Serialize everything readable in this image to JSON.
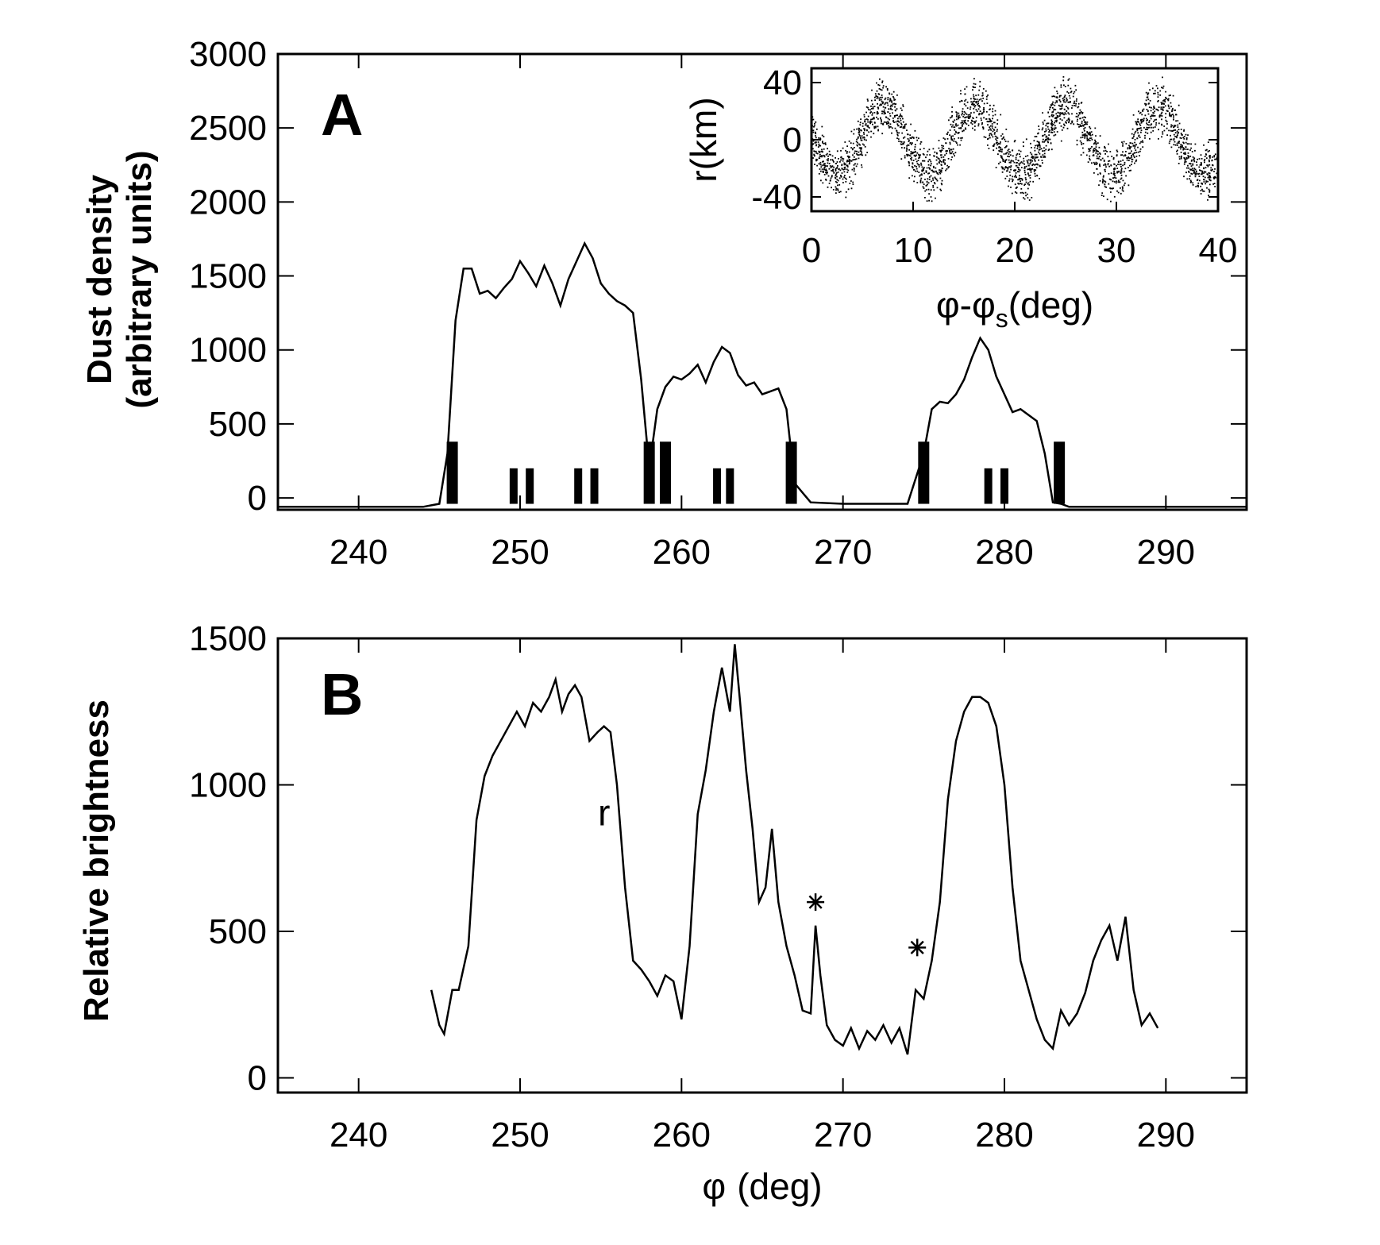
{
  "figure": {
    "colors": {
      "ink": "#000000",
      "background": "#ffffff"
    }
  },
  "chart_data": [
    {
      "panel": "A",
      "type": "line",
      "ylabel_line1": "Dust density",
      "ylabel_line2": "(arbitrary units)",
      "xlim": [
        235,
        295
      ],
      "ylim": [
        -80,
        3000
      ],
      "xticks": [
        240,
        250,
        260,
        270,
        280,
        290
      ],
      "yticks": [
        0,
        500,
        1000,
        1500,
        2000,
        2500,
        3000
      ],
      "series": [
        {
          "x": [
            235,
            244,
            245,
            245.5,
            246,
            246.5,
            247,
            247.5,
            248,
            248.5,
            249,
            249.5,
            250,
            250.5,
            251,
            251.5,
            252,
            252.5,
            253,
            253.5,
            254,
            254.5,
            255,
            255.5,
            256,
            256.5,
            257,
            257.5,
            258,
            258.5,
            259,
            259.5,
            260,
            260.5,
            261,
            261.5,
            262,
            262.5,
            263,
            263.5,
            264,
            264.5,
            265,
            265.5,
            266,
            266.5,
            267,
            268,
            270,
            274,
            275,
            275.5,
            276,
            276.5,
            277,
            277.5,
            278,
            278.5,
            279,
            279.5,
            280,
            280.5,
            281,
            281.5,
            282,
            282.5,
            283,
            283.5,
            284,
            286,
            295
          ],
          "y": [
            -60,
            -60,
            -40,
            300,
            1200,
            1550,
            1550,
            1380,
            1400,
            1350,
            1420,
            1480,
            1600,
            1520,
            1430,
            1570,
            1450,
            1300,
            1480,
            1600,
            1720,
            1620,
            1450,
            1380,
            1330,
            1300,
            1250,
            800,
            200,
            600,
            750,
            820,
            800,
            840,
            900,
            780,
            920,
            1020,
            980,
            830,
            760,
            780,
            700,
            720,
            740,
            600,
            100,
            -30,
            -40,
            -40,
            300,
            600,
            650,
            640,
            700,
            800,
            950,
            1080,
            1000,
            820,
            700,
            580,
            600,
            560,
            520,
            300,
            -30,
            -40,
            -60,
            -60,
            -60
          ]
        }
      ],
      "marker_pairs_x": [
        249.6,
        250.6,
        253.6,
        254.6,
        262.2,
        263.0,
        279.0,
        280.0
      ],
      "marker_singles_x": [
        245.8,
        258.0,
        259.0,
        266.8,
        275.0,
        283.4
      ],
      "annotation": "A"
    },
    {
      "panel": "A-inset",
      "type": "scatter",
      "xlabel_part1": "φ-φ",
      "xlabel_sub": "s",
      "xlabel_part2": "(deg)",
      "ylabel": "r(km)",
      "xlim": [
        0,
        40
      ],
      "ylim": [
        -50,
        50
      ],
      "xticks": [
        0,
        10,
        20,
        30,
        40
      ],
      "yticks": [
        40,
        0,
        -40
      ],
      "wave_amplitude": 24,
      "wave_period": 9,
      "wave_phase_deg": 7,
      "point_scatter_km": 16,
      "point_count": 2600
    },
    {
      "panel": "B",
      "type": "line",
      "xlabel_part1": "φ",
      "xlabel_part2": "(deg)",
      "ylabel": "Relative brightness",
      "xlim": [
        235,
        295
      ],
      "ylim": [
        -50,
        1500
      ],
      "xticks": [
        240,
        250,
        260,
        270,
        280,
        290
      ],
      "yticks": [
        0,
        500,
        1000,
        1500
      ],
      "series": [
        {
          "x": [
            244.5,
            245,
            245.3,
            245.8,
            246.2,
            246.8,
            247.3,
            247.8,
            248.3,
            248.8,
            249.3,
            249.8,
            250.3,
            250.8,
            251.3,
            251.8,
            252.2,
            252.6,
            253,
            253.4,
            253.8,
            254.3,
            254.8,
            255.2,
            255.6,
            256,
            256.5,
            257,
            257.5,
            258,
            258.5,
            259,
            259.5,
            260,
            260.5,
            261,
            261.5,
            262,
            262.5,
            263,
            263.3,
            263.6,
            264,
            264.4,
            264.8,
            265.2,
            265.6,
            266,
            266.5,
            267,
            267.5,
            268,
            268.3,
            268.6,
            269,
            269.5,
            270,
            270.5,
            271,
            271.5,
            272,
            272.5,
            273,
            273.5,
            274,
            274.5,
            275,
            275.5,
            276,
            276.5,
            277,
            277.5,
            278,
            278.5,
            279,
            279.5,
            280,
            280.5,
            281,
            281.5,
            282,
            282.5,
            283,
            283.5,
            284,
            284.5,
            285,
            285.5,
            286,
            286.5,
            287,
            287.5,
            288,
            288.5,
            289,
            289.5
          ],
          "y": [
            300,
            180,
            150,
            300,
            300,
            450,
            880,
            1030,
            1100,
            1150,
            1200,
            1250,
            1200,
            1280,
            1250,
            1300,
            1360,
            1250,
            1310,
            1340,
            1300,
            1150,
            1180,
            1200,
            1180,
            1000,
            650,
            400,
            370,
            330,
            280,
            350,
            330,
            200,
            450,
            900,
            1050,
            1250,
            1400,
            1250,
            1480,
            1300,
            1050,
            850,
            600,
            650,
            850,
            600,
            450,
            350,
            230,
            220,
            520,
            350,
            180,
            130,
            110,
            170,
            100,
            160,
            130,
            180,
            120,
            170,
            80,
            300,
            270,
            400,
            600,
            950,
            1150,
            1250,
            1300,
            1300,
            1280,
            1200,
            1000,
            650,
            400,
            300,
            200,
            130,
            100,
            230,
            180,
            220,
            290,
            400,
            470,
            520,
            400,
            550,
            300,
            180,
            220,
            170
          ]
        }
      ],
      "star_points": [
        {
          "x": 268.3,
          "y": 600
        },
        {
          "x": 274.6,
          "y": 445
        }
      ],
      "r_label": "r",
      "r_label_pos": {
        "x": 255.2,
        "y": 910
      },
      "annotation": "B"
    }
  ]
}
